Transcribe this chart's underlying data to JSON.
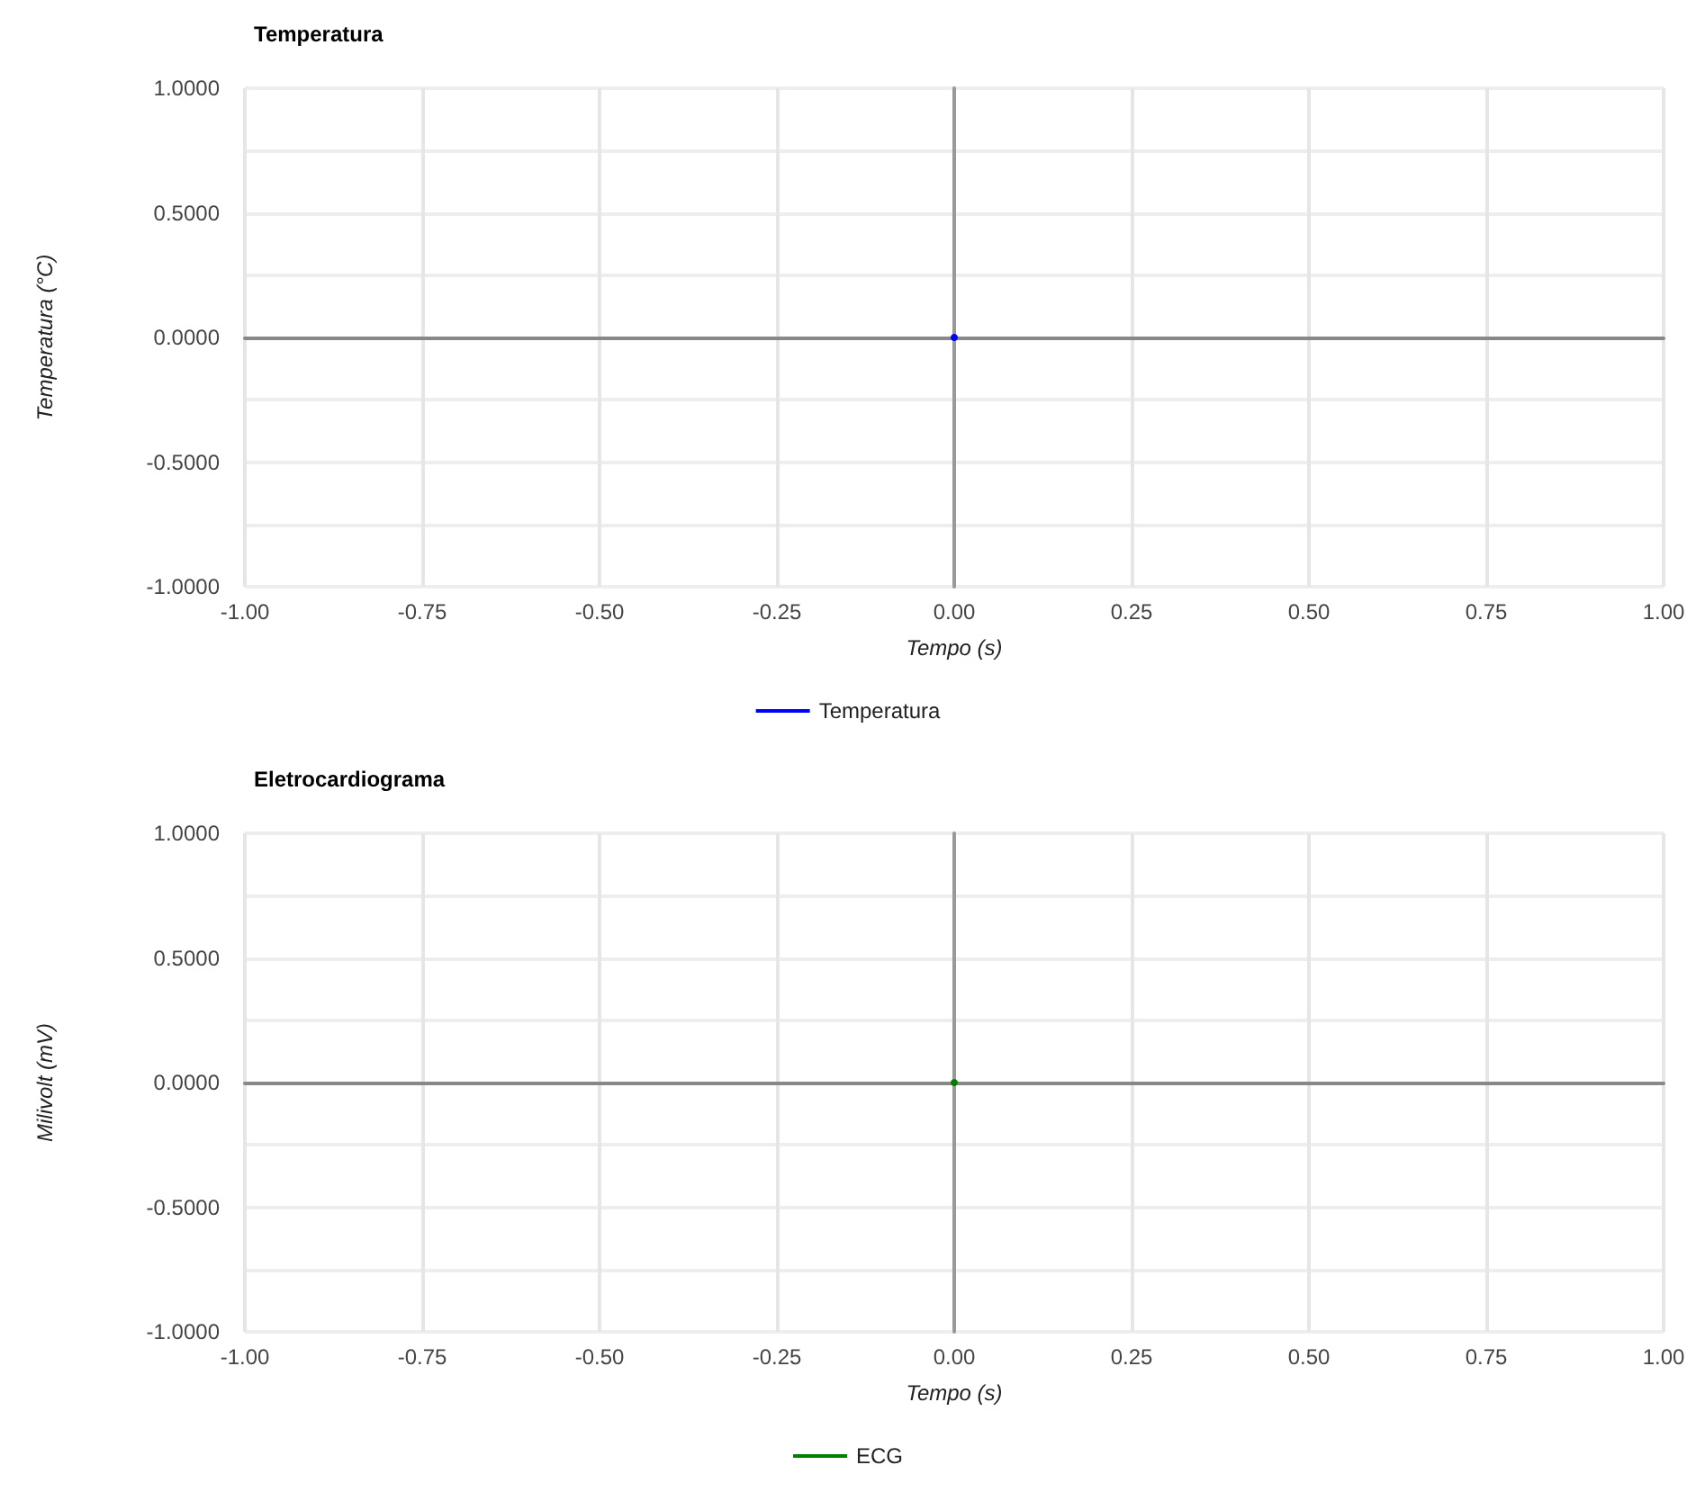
{
  "chart_data": [
    {
      "type": "line",
      "title": "Temperatura",
      "xlabel": "Tempo (s)",
      "ylabel": "Temperatura (°C)",
      "x": [
        0
      ],
      "series": [
        {
          "name": "Temperatura",
          "color": "#0000ff",
          "values": [
            0
          ]
        }
      ],
      "xlim": [
        -1,
        1
      ],
      "xticks": [
        {
          "value": -1,
          "label": "-1.00"
        },
        {
          "value": -0.75,
          "label": "-0.75"
        },
        {
          "value": -0.5,
          "label": "-0.50"
        },
        {
          "value": -0.25,
          "label": "-0.25"
        },
        {
          "value": 0,
          "label": "0.00"
        },
        {
          "value": 0.25,
          "label": "0.25"
        },
        {
          "value": 0.5,
          "label": "0.50"
        },
        {
          "value": 0.75,
          "label": "0.75"
        },
        {
          "value": 1,
          "label": "1.00"
        }
      ],
      "ylim": [
        -1,
        1
      ],
      "yticks": [
        {
          "value": -1,
          "label": "-1.0000"
        },
        {
          "value": -0.75,
          "label": null
        },
        {
          "value": -0.5,
          "label": "-0.5000"
        },
        {
          "value": -0.25,
          "label": null
        },
        {
          "value": 0,
          "label": "0.0000"
        },
        {
          "value": 0.25,
          "label": null
        },
        {
          "value": 0.5,
          "label": "0.5000"
        },
        {
          "value": 0.75,
          "label": null
        },
        {
          "value": 1,
          "label": "1.0000"
        }
      ],
      "grid": true,
      "legend": "bottom",
      "marker": "circle"
    },
    {
      "type": "line",
      "title": "Eletrocardiograma",
      "xlabel": "Tempo (s)",
      "ylabel": "Milivolt (mV)",
      "x": [
        0
      ],
      "series": [
        {
          "name": "ECG",
          "color": "#008000",
          "values": [
            0
          ]
        }
      ],
      "xlim": [
        -1,
        1
      ],
      "xticks": [
        {
          "value": -1,
          "label": "-1.00"
        },
        {
          "value": -0.75,
          "label": "-0.75"
        },
        {
          "value": -0.5,
          "label": "-0.50"
        },
        {
          "value": -0.25,
          "label": "-0.25"
        },
        {
          "value": 0,
          "label": "0.00"
        },
        {
          "value": 0.25,
          "label": "0.25"
        },
        {
          "value": 0.5,
          "label": "0.50"
        },
        {
          "value": 0.75,
          "label": "0.75"
        },
        {
          "value": 1,
          "label": "1.00"
        }
      ],
      "ylim": [
        -1,
        1
      ],
      "yticks": [
        {
          "value": -1,
          "label": "-1.0000"
        },
        {
          "value": -0.75,
          "label": null
        },
        {
          "value": -0.5,
          "label": "-0.5000"
        },
        {
          "value": -0.25,
          "label": null
        },
        {
          "value": 0,
          "label": "0.0000"
        },
        {
          "value": 0.25,
          "label": null
        },
        {
          "value": 0.5,
          "label": "0.5000"
        },
        {
          "value": 0.75,
          "label": null
        },
        {
          "value": 1,
          "label": "1.0000"
        }
      ],
      "grid": true,
      "legend": "bottom",
      "marker": "circle"
    }
  ]
}
